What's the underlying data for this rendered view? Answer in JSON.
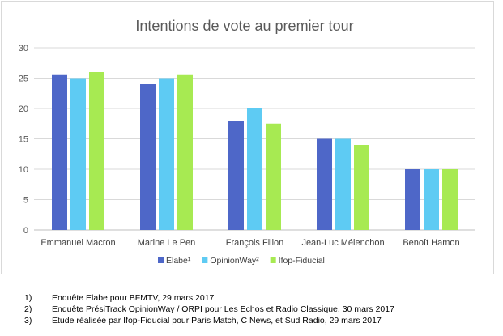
{
  "chart_data": {
    "type": "bar",
    "title": "Intentions de vote au premier tour",
    "categories": [
      "Emmanuel Macron",
      "Marine Le Pen",
      "François Fillon",
      "Jean-Luc Mélenchon",
      "Benoît Hamon"
    ],
    "series": [
      {
        "name": "Elabe¹",
        "color": "#4e67c8",
        "values": [
          25.5,
          24,
          18,
          15,
          10
        ]
      },
      {
        "name": "OpinionWay²",
        "color": "#5ecbf3",
        "values": [
          25,
          25,
          20,
          15,
          10
        ]
      },
      {
        "name": "Ifop-Fiducial",
        "color": "#a7ea52",
        "values": [
          26,
          25.5,
          17.5,
          14,
          10
        ]
      }
    ],
    "y_ticks": [
      "0",
      "5",
      "10",
      "15",
      "20",
      "25",
      "30"
    ],
    "ylim": [
      0,
      30
    ],
    "grid": true,
    "legend_position": "bottom"
  },
  "notes": [
    {
      "num": "1)",
      "text": "Enquête Elabe pour BFMTV, 29 mars 2017"
    },
    {
      "num": "2)",
      "text": "Enquête PrésiTrack OpinionWay / ORPI pour Les Echos et Radio Classique, 30 mars 2017"
    },
    {
      "num": "3)",
      "text": "Etude réalisée par Ifop-Fiducial pour Paris Match, C News, et Sud Radio, 29 mars 2017"
    }
  ]
}
